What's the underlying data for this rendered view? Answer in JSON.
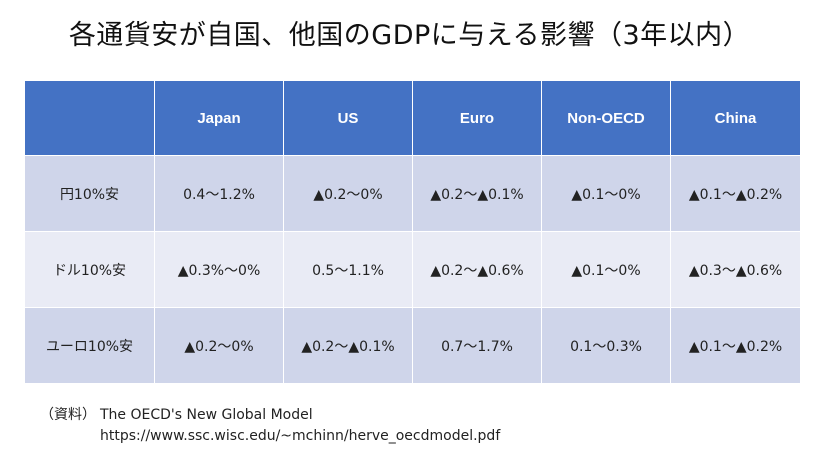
{
  "title": "各通貨安が自国、他国のGDPに与える影響（3年以内）",
  "table": {
    "corner": "",
    "columns": [
      "Japan",
      "US",
      "Euro",
      "Non-OECD",
      "China"
    ],
    "rows": [
      {
        "label": "円10%安",
        "cells": [
          "0.4～1.2%",
          "▲0.2～0%",
          "▲0.2～▲0.1%",
          "▲0.1～0%",
          "▲0.1～▲0.2%"
        ]
      },
      {
        "label": "ドル10%安",
        "cells": [
          "▲0.3%～0%",
          "0.5～1.1%",
          "▲0.2～▲0.6%",
          "▲0.1～0%",
          "▲0.3～▲0.6%"
        ]
      },
      {
        "label": "ユーロ10%安",
        "cells": [
          "▲0.2～0%",
          "▲0.2～▲0.1%",
          "0.7～1.7%",
          "0.1～0.3%",
          "▲0.1～▲0.2%"
        ]
      }
    ]
  },
  "source": {
    "label": "（資料）",
    "line1": "The OECD's New Global Model",
    "line2": "https://www.ssc.wisc.edu/~mchinn/herve_oecdmodel.pdf"
  }
}
